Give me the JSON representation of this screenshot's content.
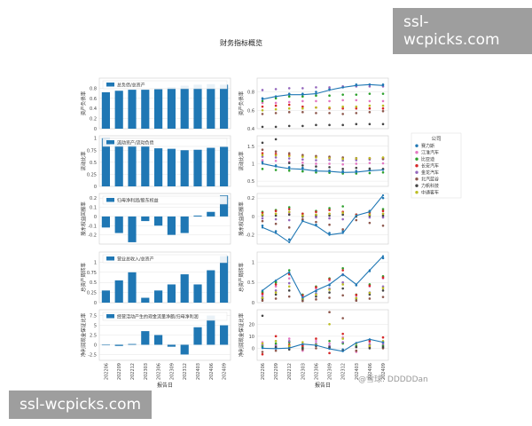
{
  "watermarks": {
    "top": "ssl-wcpicks.com",
    "bottom": "ssl-wcpicks.com"
  },
  "credit": "@雪球: DDDDDan",
  "colors": {
    "bar": "#1f77b4",
    "line": "#1f77b4",
    "companies": [
      "#1f77b4",
      "#e377c2",
      "#2ca02c",
      "#d62728",
      "#9467bd",
      "#8c564b",
      "#444444",
      "#bcbd22"
    ]
  },
  "chart_data": {
    "title": "财务指标概览",
    "type": "bar",
    "x_label": "报告日",
    "categories": [
      "202206",
      "202209",
      "202212",
      "202303",
      "202306",
      "202309",
      "202312",
      "202403",
      "202406",
      "202409"
    ],
    "legend": {
      "title": "公司",
      "position": "right",
      "entries": [
        "赛力斯",
        "江淮汽车",
        "比亚迪",
        "长安汽车",
        "金龙汽车",
        "北汽蓝谷",
        "力帆科技",
        "中通客车"
      ]
    },
    "rows": [
      {
        "ylabel": "资产负债率",
        "bar_legend": "总负债/总资产",
        "ylim_left": [
          0,
          1.0
        ],
        "yticks_left": [
          0,
          0.2,
          0.4,
          0.6,
          0.8
        ],
        "bar_values": [
          0.72,
          0.75,
          0.77,
          0.77,
          0.78,
          0.82,
          0.85,
          0.87,
          0.88,
          0.87
        ],
        "ylim_right": [
          0.4,
          0.95
        ],
        "yticks_right": [
          0.4,
          0.6,
          0.8
        ],
        "line_values": [
          0.72,
          0.75,
          0.77,
          0.77,
          0.78,
          0.82,
          0.85,
          0.87,
          0.88,
          0.87
        ],
        "company_values": [
          [
            0.73,
            0.75,
            0.78,
            0.78,
            0.8,
            0.83,
            0.85,
            0.88,
            0.88,
            0.88
          ],
          [
            0.68,
            0.68,
            0.69,
            0.7,
            0.7,
            0.7,
            0.71,
            0.71,
            0.7,
            0.7
          ],
          [
            0.7,
            0.73,
            0.75,
            0.75,
            0.76,
            0.76,
            0.77,
            0.77,
            0.78,
            0.78
          ],
          [
            0.64,
            0.65,
            0.66,
            0.64,
            0.63,
            0.62,
            0.62,
            0.62,
            0.62,
            0.62
          ],
          [
            0.82,
            0.83,
            0.84,
            0.84,
            0.85,
            0.85,
            0.86,
            0.86,
            0.86,
            0.86
          ],
          [
            0.56,
            0.57,
            0.58,
            0.58,
            0.57,
            0.57,
            0.56,
            0.57,
            0.58,
            0.59
          ],
          [
            0.42,
            0.42,
            0.43,
            0.43,
            0.44,
            0.44,
            0.44,
            0.45,
            0.45,
            0.45
          ],
          [
            0.6,
            0.61,
            0.62,
            0.62,
            0.63,
            0.63,
            0.64,
            0.64,
            0.65,
            0.65
          ]
        ]
      },
      {
        "ylabel": "流动比率",
        "bar_legend": "流动资产/流动负债",
        "ylim_left": [
          0,
          1.05
        ],
        "yticks_left": [
          0.0,
          0.25,
          0.5,
          0.75,
          1.0
        ],
        "bar_values": [
          1.0,
          0.92,
          0.86,
          0.84,
          0.79,
          0.78,
          0.75,
          0.76,
          0.8,
          0.82
        ],
        "ylim_right": [
          0.35,
          1.8
        ],
        "yticks_right": [
          0.5,
          1.0,
          1.5
        ],
        "line_values": [
          1.0,
          0.92,
          0.86,
          0.84,
          0.79,
          0.78,
          0.75,
          0.76,
          0.8,
          0.82
        ],
        "company_values": [
          [
            1.05,
            0.95,
            0.9,
            0.88,
            0.82,
            0.8,
            0.78,
            0.79,
            0.82,
            0.84
          ],
          [
            1.1,
            1.08,
            1.05,
            1.03,
            1.0,
            1.0,
            0.98,
            1.0,
            1.02,
            1.01
          ],
          [
            0.85,
            0.82,
            0.8,
            0.78,
            0.75,
            0.74,
            0.72,
            0.72,
            0.73,
            0.75
          ],
          [
            1.3,
            1.28,
            1.25,
            1.22,
            1.2,
            1.18,
            1.15,
            1.14,
            1.16,
            1.17
          ],
          [
            1.2,
            1.18,
            1.15,
            1.12,
            1.1,
            1.11,
            1.09,
            1.1,
            1.12,
            1.13
          ],
          [
            1.4,
            1.35,
            1.3,
            1.25,
            1.22,
            1.2,
            1.18,
            1.16,
            1.15,
            1.14
          ],
          [
            1.6,
            1.7,
            1.02,
            0.95,
            0.92,
            0.9,
            0.85,
            0.88,
            0.86,
            0.85
          ],
          [
            1.25,
            1.24,
            1.22,
            1.2,
            1.18,
            1.16,
            1.14,
            1.15,
            1.16,
            1.18
          ]
        ]
      },
      {
        "ylabel": "股东权益回报率",
        "bar_legend": "归母净利润/股东权益",
        "ylim_left": [
          -0.3,
          0.25
        ],
        "yticks_left": [
          -0.2,
          -0.1,
          0.0,
          0.1,
          0.2
        ],
        "bar_values": [
          -0.12,
          -0.18,
          -0.28,
          -0.05,
          -0.1,
          -0.2,
          -0.18,
          0.01,
          0.05,
          0.23
        ],
        "ylim_right": [
          -0.3,
          0.25
        ],
        "yticks_right": [
          -0.2,
          0.0,
          0.2
        ],
        "line_values": [
          -0.12,
          -0.18,
          -0.28,
          -0.05,
          -0.1,
          -0.2,
          -0.18,
          0.01,
          0.05,
          0.23
        ],
        "company_values": [
          [
            -0.1,
            -0.16,
            -0.25,
            -0.04,
            -0.09,
            -0.18,
            -0.16,
            0.02,
            0.06,
            0.2
          ],
          [
            0.02,
            0.03,
            0.04,
            0.01,
            0.02,
            0.03,
            0.04,
            0.01,
            0.02,
            0.03
          ],
          [
            0.05,
            0.07,
            0.1,
            0.03,
            0.06,
            0.09,
            0.11,
            0.02,
            0.05,
            0.08
          ],
          [
            0.04,
            0.06,
            0.08,
            0.03,
            0.05,
            0.07,
            0.05,
            0.02,
            0.04,
            0.06
          ],
          [
            -0.02,
            -0.03,
            -0.04,
            0.0,
            -0.01,
            -0.02,
            -0.03,
            0.0,
            -0.01,
            -0.01
          ],
          [
            -0.05,
            -0.08,
            -0.12,
            -0.03,
            -0.06,
            -0.09,
            -0.14,
            -0.04,
            -0.07,
            -0.1
          ],
          [
            0.01,
            0.01,
            0.02,
            0.0,
            0.01,
            0.01,
            0.02,
            0.0,
            0.01,
            0.01
          ],
          [
            0.02,
            0.03,
            0.05,
            0.01,
            0.02,
            0.03,
            0.04,
            0.01,
            0.02,
            0.03
          ]
        ]
      },
      {
        "ylabel": "总资产周转率",
        "bar_legend": "营业总收入/总资产",
        "ylim_left": [
          0,
          1.25
        ],
        "yticks_left": [
          0.0,
          0.25,
          0.5,
          0.75,
          1.0
        ],
        "bar_values": [
          0.3,
          0.55,
          0.75,
          0.12,
          0.3,
          0.45,
          0.7,
          0.45,
          0.8,
          1.15
        ],
        "ylim_right": [
          0,
          1.25
        ],
        "yticks_right": [
          0.0,
          0.5,
          1.0
        ],
        "line_values": [
          0.3,
          0.55,
          0.75,
          0.12,
          0.3,
          0.45,
          0.7,
          0.45,
          0.8,
          1.15
        ],
        "company_values": [
          [
            0.28,
            0.52,
            0.72,
            0.11,
            0.28,
            0.43,
            0.68,
            0.43,
            0.78,
            1.1
          ],
          [
            0.2,
            0.4,
            0.6,
            0.15,
            0.35,
            0.55,
            0.7,
            0.18,
            0.4,
            0.6
          ],
          [
            0.25,
            0.5,
            0.8,
            0.2,
            0.4,
            0.6,
            0.85,
            0.2,
            0.45,
            0.65
          ],
          [
            0.22,
            0.45,
            0.7,
            0.18,
            0.38,
            0.58,
            0.8,
            0.19,
            0.42,
            0.62
          ],
          [
            0.15,
            0.3,
            0.48,
            0.1,
            0.22,
            0.35,
            0.5,
            0.12,
            0.25,
            0.4
          ],
          [
            0.05,
            0.1,
            0.15,
            0.04,
            0.08,
            0.12,
            0.18,
            0.05,
            0.1,
            0.14
          ],
          [
            0.1,
            0.2,
            0.3,
            0.08,
            0.15,
            0.25,
            0.35,
            0.1,
            0.2,
            0.3
          ],
          [
            0.12,
            0.25,
            0.4,
            0.1,
            0.2,
            0.32,
            0.45,
            0.11,
            0.24,
            0.36
          ]
        ]
      },
      {
        "ylabel": "净利润现金保证比率",
        "bar_legend": "经营活动产生的现金流量净额/归母净利润",
        "ylim_left": [
          -4,
          9
        ],
        "yticks_left": [
          -2.5,
          0.0,
          2.5,
          5.0,
          7.5
        ],
        "bar_values": [
          0.0,
          -0.3,
          0.2,
          3.5,
          2.5,
          -0.5,
          -2.5,
          4.5,
          7.5,
          5.0
        ],
        "ylim_right": [
          -10,
          32
        ],
        "yticks_right": [
          0,
          10,
          20
        ],
        "line_values": [
          0.0,
          -0.3,
          0.2,
          3.5,
          2.5,
          -0.5,
          -2.5,
          4.5,
          7.5,
          5.0
        ],
        "company_values": [
          [
            1.0,
            0.5,
            2.0,
            3.0,
            2.5,
            0.5,
            -1.0,
            4.0,
            7.0,
            5.0
          ],
          [
            5.0,
            3.0,
            8.0,
            -2.0,
            6.0,
            4.0,
            9.0,
            -3.0,
            5.0,
            3.0
          ],
          [
            2.0,
            4.0,
            5.0,
            1.0,
            3.0,
            6.0,
            4.0,
            2.0,
            3.0,
            2.0
          ],
          [
            -5.0,
            10.0,
            3.0,
            2.0,
            8.0,
            -4.0,
            12.0,
            -2.0,
            6.0,
            9.0
          ],
          [
            3.0,
            2.0,
            6.0,
            -1.0,
            4.0,
            2.0,
            5.0,
            1.0,
            3.0,
            4.0
          ],
          [
            -3.0,
            -2.0,
            1.0,
            -1.0,
            0.0,
            30.0,
            25.0,
            -2.0,
            1.0,
            0.0
          ],
          [
            27.0,
            1.0,
            -1.0,
            0.0,
            2.0,
            1.0,
            -2.0,
            1.0,
            0.0,
            1.0
          ],
          [
            4.0,
            6.0,
            2.0,
            5.0,
            3.0,
            20.0,
            8.0,
            4.0,
            2.0,
            6.0
          ]
        ]
      }
    ]
  }
}
